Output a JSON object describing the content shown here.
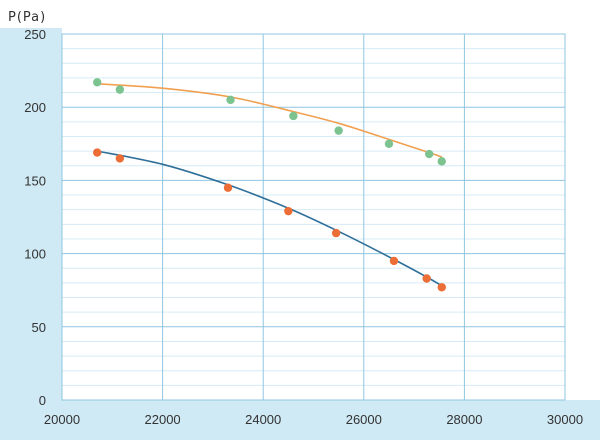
{
  "chart_data": {
    "type": "scatter",
    "title": "",
    "ylabel": "P(Pa)",
    "xlabel": "",
    "xlim": [
      20000,
      30000
    ],
    "ylim": [
      0,
      250
    ],
    "x_ticks": [
      20000,
      22000,
      24000,
      26000,
      28000,
      30000
    ],
    "y_ticks": [
      0,
      50,
      100,
      150,
      200,
      250
    ],
    "grid": true,
    "colors": {
      "background_band": "#cfe9f5",
      "plot_border": "#8fc6e0",
      "grid_major": "#8fc6e0",
      "grid_minor": "#d6ecf6",
      "upper_line": "#f0a050",
      "upper_points": "#7cc38f",
      "lower_line": "#2f6f99",
      "lower_points": "#ec6d35"
    },
    "series": [
      {
        "key": "upper",
        "x": [
          20700,
          21150,
          23350,
          24600,
          25500,
          26500,
          27300,
          27550
        ],
        "y": [
          217,
          212,
          205,
          194,
          184,
          175,
          168,
          163
        ],
        "fit": [
          [
            20700,
            216
          ],
          [
            22000,
            213
          ],
          [
            23350,
            207
          ],
          [
            24600,
            197
          ],
          [
            25500,
            189
          ],
          [
            26500,
            178
          ],
          [
            27300,
            169
          ],
          [
            27550,
            166
          ]
        ]
      },
      {
        "key": "lower",
        "x": [
          20700,
          21150,
          23300,
          24500,
          25450,
          26600,
          27250,
          27550
        ],
        "y": [
          169,
          165,
          145,
          129,
          114,
          95,
          83,
          77
        ],
        "fit": [
          [
            20700,
            170
          ],
          [
            22000,
            161
          ],
          [
            23300,
            147
          ],
          [
            24500,
            131
          ],
          [
            25450,
            116
          ],
          [
            26600,
            96
          ],
          [
            27250,
            84
          ],
          [
            27550,
            78
          ]
        ]
      }
    ]
  }
}
